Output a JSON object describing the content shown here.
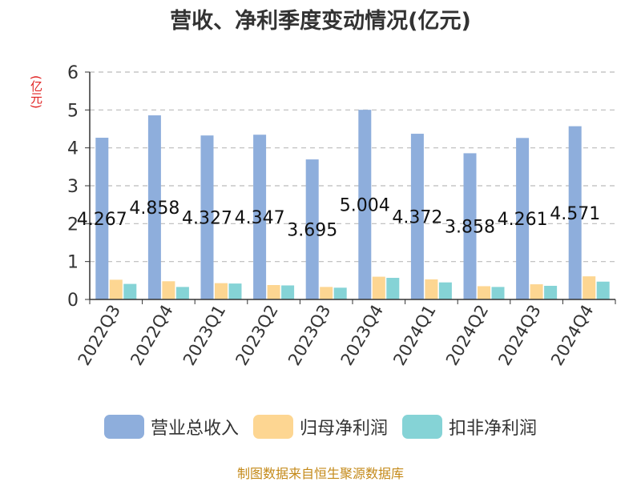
{
  "chart_data": {
    "type": "bar",
    "title": "营收、净利季度变动情况(亿元)",
    "unit_label": "(亿元)",
    "categories": [
      "2022Q3",
      "2022Q4",
      "2023Q1",
      "2023Q2",
      "2023Q3",
      "2023Q4",
      "2024Q1",
      "2024Q2",
      "2024Q3",
      "2024Q4"
    ],
    "series": [
      {
        "name": "营业总收入",
        "color": "#8eaedc",
        "values": [
          4.267,
          4.858,
          4.327,
          4.347,
          3.695,
          5.004,
          4.372,
          3.858,
          4.261,
          4.571
        ],
        "labels": [
          "4.267",
          "4.858",
          "4.327",
          "4.347",
          "3.695",
          "5.004",
          "4.372",
          "3.858",
          "4.261",
          "4.571"
        ]
      },
      {
        "name": "归母净利润",
        "color": "#fdd692",
        "values": [
          0.52,
          0.48,
          0.43,
          0.38,
          0.33,
          0.6,
          0.53,
          0.35,
          0.4,
          0.61
        ]
      },
      {
        "name": "扣非净利润",
        "color": "#85d3d6",
        "values": [
          0.41,
          0.33,
          0.42,
          0.37,
          0.31,
          0.57,
          0.45,
          0.33,
          0.36,
          0.47
        ]
      }
    ],
    "yticks": [
      "0",
      "1",
      "2",
      "3",
      "4",
      "5",
      "6"
    ],
    "ylim": [
      0,
      6
    ],
    "grid": true,
    "legend_position": "bottom",
    "source_note": "制图数据来自恒生聚源数据库"
  }
}
